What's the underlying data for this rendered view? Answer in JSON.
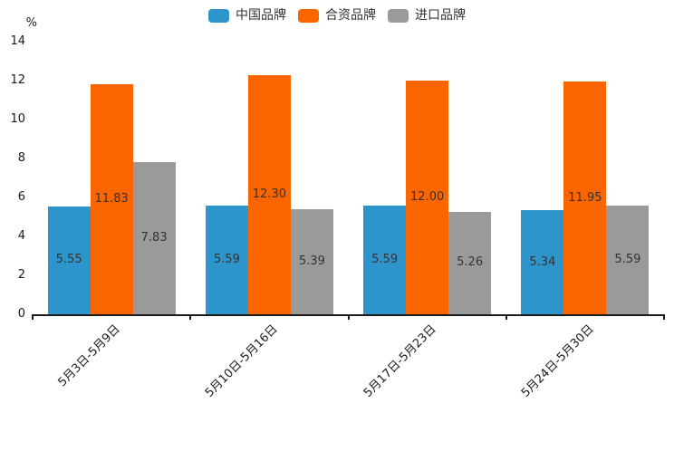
{
  "chart_data": {
    "type": "bar",
    "title": "",
    "unit_label": "%",
    "categories": [
      "5月3日-5月9日",
      "5月10日-5月16日",
      "5月17日-5月23日",
      "5月24日-5月30日"
    ],
    "series": [
      {
        "name": "中国品牌",
        "color": "#2E95CC",
        "values": [
          5.55,
          5.59,
          5.59,
          5.34
        ],
        "labels": [
          "5.55",
          "5.59",
          "5.59",
          "5.34"
        ]
      },
      {
        "name": "合资品牌",
        "color": "#FB6500",
        "values": [
          11.83,
          12.3,
          12.0,
          11.95
        ],
        "labels": [
          "11.83",
          "12.30",
          "12.00",
          "11.95"
        ]
      },
      {
        "name": "进口品牌",
        "color": "#9A9A9A",
        "values": [
          7.83,
          5.39,
          5.26,
          5.59
        ],
        "labels": [
          "7.83",
          "5.39",
          "5.26",
          "5.59"
        ]
      }
    ],
    "ylim": [
      0,
      14
    ],
    "yticks": [
      0,
      2,
      4,
      6,
      8,
      10,
      12,
      14
    ],
    "grid": false,
    "legend_position": "top",
    "value_labels_inside_bars": true,
    "axis_color": "#1a1a1a",
    "label_text_color": "#333333"
  }
}
